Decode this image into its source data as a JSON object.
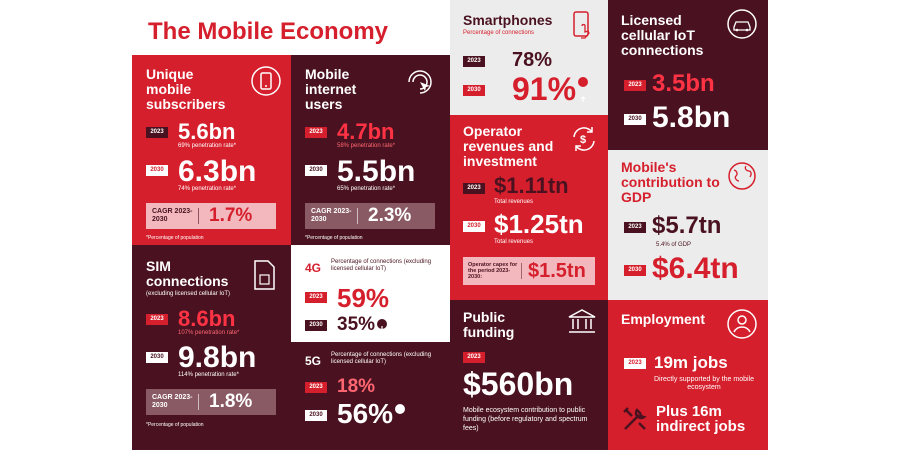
{
  "title": "The Mobile Economy",
  "unique_subscribers": {
    "heading": "Unique mobile subscribers",
    "y2023": "2023",
    "v2023": "5.6bn",
    "p2023": "69% penetration rate*",
    "y2030": "2030",
    "v2030": "6.3bn",
    "p2030": "74% penetration rate*",
    "cagr_label": "CAGR 2023-2030",
    "cagr": "1.7%",
    "footnote": "*Percentage of population"
  },
  "internet_users": {
    "heading": "Mobile internet users",
    "y2023": "2023",
    "v2023": "4.7bn",
    "p2023": "58% penetration rate*",
    "y2030": "2030",
    "v2030": "5.5bn",
    "p2030": "65% penetration rate*",
    "cagr_label": "CAGR 2023-2030",
    "cagr": "2.3%",
    "footnote": "*Percentage of population"
  },
  "sim": {
    "heading": "SIM connections",
    "subheading": "(excluding licensed cellular IoT)",
    "y2023": "2023",
    "v2023": "8.6bn",
    "p2023": "107% penetration rate*",
    "y2030": "2030",
    "v2030": "9.8bn",
    "p2030": "114% penetration rate*",
    "cagr_label": "CAGR 2023-2030",
    "cagr": "1.8%",
    "footnote": "*Percentage of population"
  },
  "g4": {
    "label": "4G",
    "desc": "Percentage of connections (excluding licensed cellular IoT)",
    "y2023": "2023",
    "v2023": "59%",
    "y2030": "2030",
    "v2030": "35%"
  },
  "g5": {
    "label": "5G",
    "desc": "Percentage of connections (excluding licensed cellular IoT)",
    "y2023": "2023",
    "v2023": "18%",
    "y2030": "2030",
    "v2030": "56%"
  },
  "smartphones": {
    "heading": "Smartphones",
    "desc": "Percentage of connections",
    "y2023": "2023",
    "v2023": "78%",
    "y2030": "2030",
    "v2030": "91%"
  },
  "operator": {
    "heading": "Operator revenues and investment",
    "y2023": "2023",
    "v2023": "$1.11tn",
    "n2023": "Total revenues",
    "y2030": "2030",
    "v2030": "$1.25tn",
    "n2030": "Total revenues",
    "capex_label": "Operator capex for the period 2023-2030:",
    "capex": "$1.5tn"
  },
  "public_funding": {
    "heading": "Public funding",
    "y2023": "2023",
    "value": "$560bn",
    "desc": "Mobile ecosystem contribution to public funding (before regulatory and spectrum fees)"
  },
  "iot": {
    "heading": "Licensed cellular IoT connections",
    "y2023": "2023",
    "v2023": "3.5bn",
    "y2030": "2030",
    "v2030": "5.8bn"
  },
  "gdp": {
    "heading": "Mobile's contribution to GDP",
    "y2023": "2023",
    "v2023": "$5.7tn",
    "n2023": "5.4% of GDP",
    "y2030": "2030",
    "v2030": "$6.4tn"
  },
  "employment": {
    "heading": "Employment",
    "y2023": "2023",
    "jobs": "19m jobs",
    "jobs_note": "Directly supported by the mobile ecosystem",
    "plus": "Plus 16m indirect jobs"
  },
  "colors": {
    "red": "#d61f2c",
    "dark": "#4a1220",
    "light": "#ececec"
  }
}
